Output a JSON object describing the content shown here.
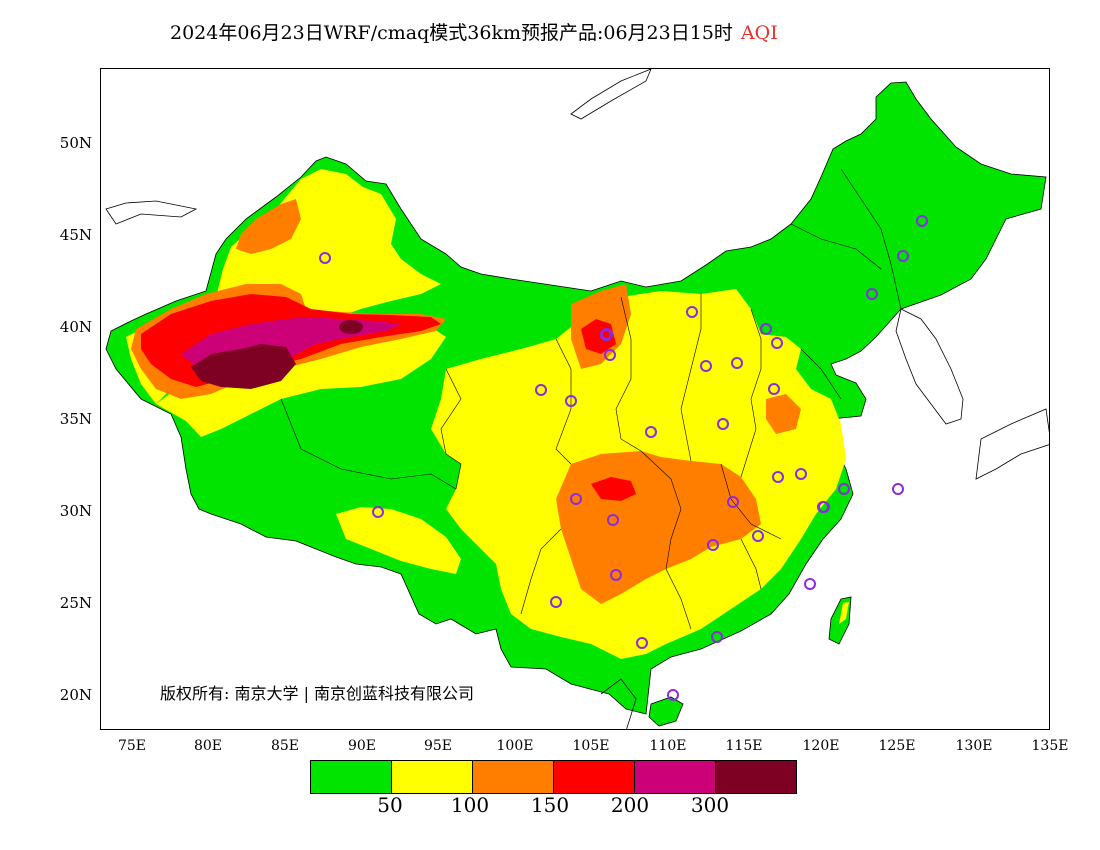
{
  "title": "2024年06月23日WRF/cmaq模式36km预报产品:06月23日15时",
  "title_highlight": "AQI",
  "copyright": "版权所有: 南京大学 | 南京创蓝科技有限公司",
  "y_axis_labels": [
    "50N",
    "45N",
    "40N",
    "35N",
    "30N",
    "25N",
    "20N"
  ],
  "x_axis_labels": [
    "75E",
    "80E",
    "85E",
    "90E",
    "95E",
    "100E",
    "105E",
    "110E",
    "115E",
    "120E",
    "125E",
    "130E",
    "135E"
  ],
  "legend": {
    "colors": [
      "#00e400",
      "#ffff00",
      "#ff7e00",
      "#ff0000",
      "#cc0077",
      "#7e0023"
    ],
    "labels": [
      "50",
      "100",
      "150",
      "200",
      "300"
    ]
  },
  "colors": {
    "good": "#00e400",
    "moderate": "#ffff00",
    "sensitive": "#ff7e00",
    "unhealthy": "#ff0000",
    "very_unhealthy": "#cc0077",
    "hazardous": "#7e0023",
    "station_marker": "#8a2be2"
  }
}
